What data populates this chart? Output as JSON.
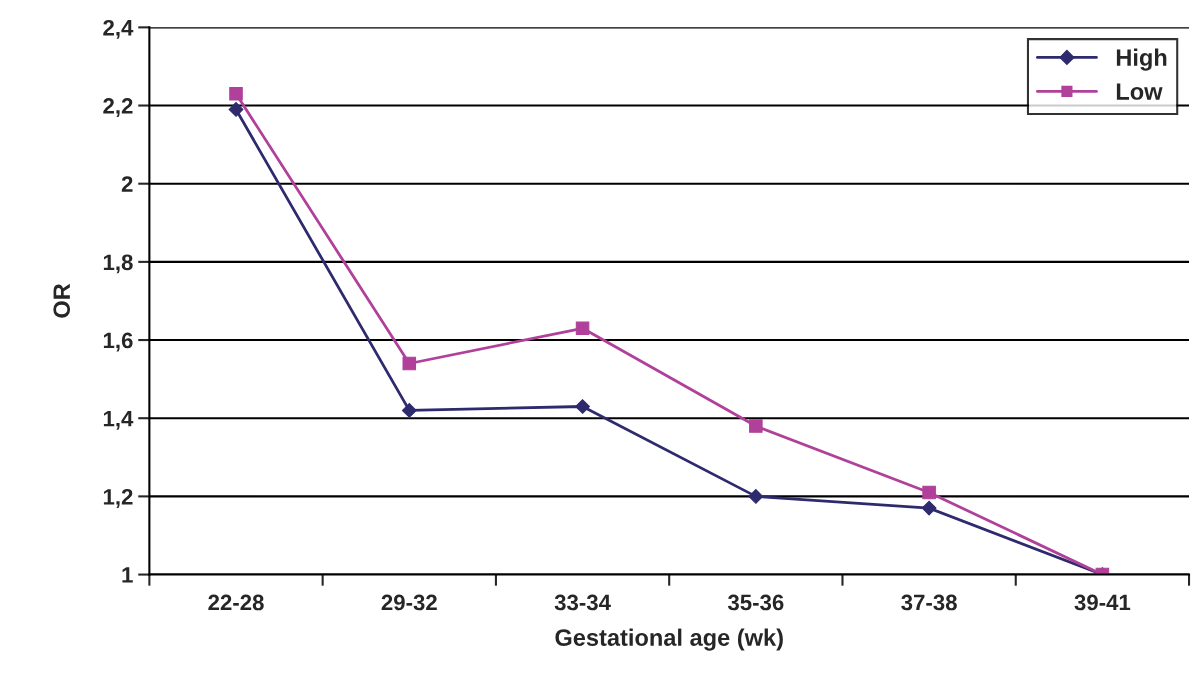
{
  "chart_data": {
    "type": "line",
    "xlabel": "Gestational age (wk)",
    "ylabel": "OR",
    "categories": [
      "22-28",
      "29-32",
      "33-34",
      "35-36",
      "37-38",
      "39-41"
    ],
    "series": [
      {
        "name": "High",
        "color": "#2e2a6e",
        "marker": "diamond",
        "values": [
          2.19,
          1.42,
          1.43,
          1.2,
          1.17,
          1.0
        ]
      },
      {
        "name": "Low",
        "color": "#b0409a",
        "marker": "square",
        "values": [
          2.23,
          1.54,
          1.63,
          1.38,
          1.21,
          1.0
        ]
      }
    ],
    "ylim": [
      1,
      2.4
    ],
    "yticks": [
      1,
      {
        "value": 1.2,
        "label": "1,2"
      },
      {
        "value": 1.4,
        "label": "1,4"
      },
      {
        "value": 1.6,
        "label": "1,6"
      },
      {
        "value": 1.8,
        "label": "1,8"
      },
      2,
      {
        "value": 2.2,
        "label": "2,2"
      },
      {
        "value": 2.4,
        "label": "2,4"
      }
    ],
    "grid": "y",
    "legend": "top right",
    "line_style": "solid"
  }
}
